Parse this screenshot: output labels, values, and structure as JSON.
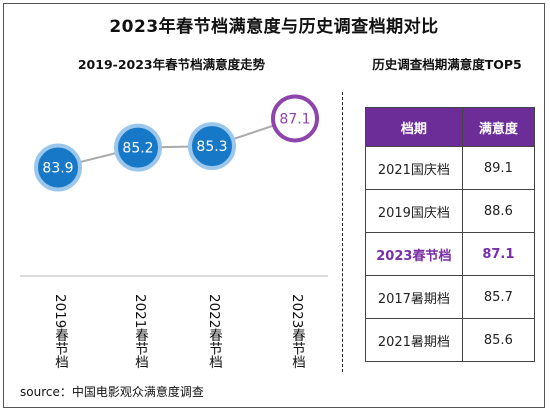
{
  "title": "2023年春节档满意度与历史调查档期对比",
  "left_subtitle": "2019-2023年春节档满意度走势",
  "right_subtitle": "历史调查档期满意度TOP5",
  "source": "source：中国电影观众满意度调查",
  "colors": {
    "blue_node": "#1778c8",
    "purple_node": "#8e44ad",
    "header_bg": "#6d2d99",
    "highlight_text": "#7a2ea8",
    "line": "#aaaaaa"
  },
  "chart_data": [
    {
      "type": "line",
      "title": "2019-2023年春节档满意度走势",
      "categories": [
        "2019春节档",
        "2021春节档",
        "2022春节档",
        "2023春节档"
      ],
      "values": [
        83.9,
        85.2,
        85.3,
        87.1
      ],
      "highlight_index": 3,
      "ylim": [
        82.5,
        88.5
      ],
      "grid": false
    },
    {
      "type": "table",
      "title": "历史调查档期满意度TOP5",
      "columns": [
        "档期",
        "满意度"
      ],
      "rows": [
        {
          "name": "2021国庆档",
          "value": "89.1"
        },
        {
          "name": "2019国庆档",
          "value": "88.6"
        },
        {
          "name": "2023春节档",
          "value": "87.1"
        },
        {
          "name": "2017暑期档",
          "value": "85.7"
        },
        {
          "name": "2021暑期档",
          "value": "85.6"
        }
      ],
      "highlight_row": 2
    }
  ]
}
